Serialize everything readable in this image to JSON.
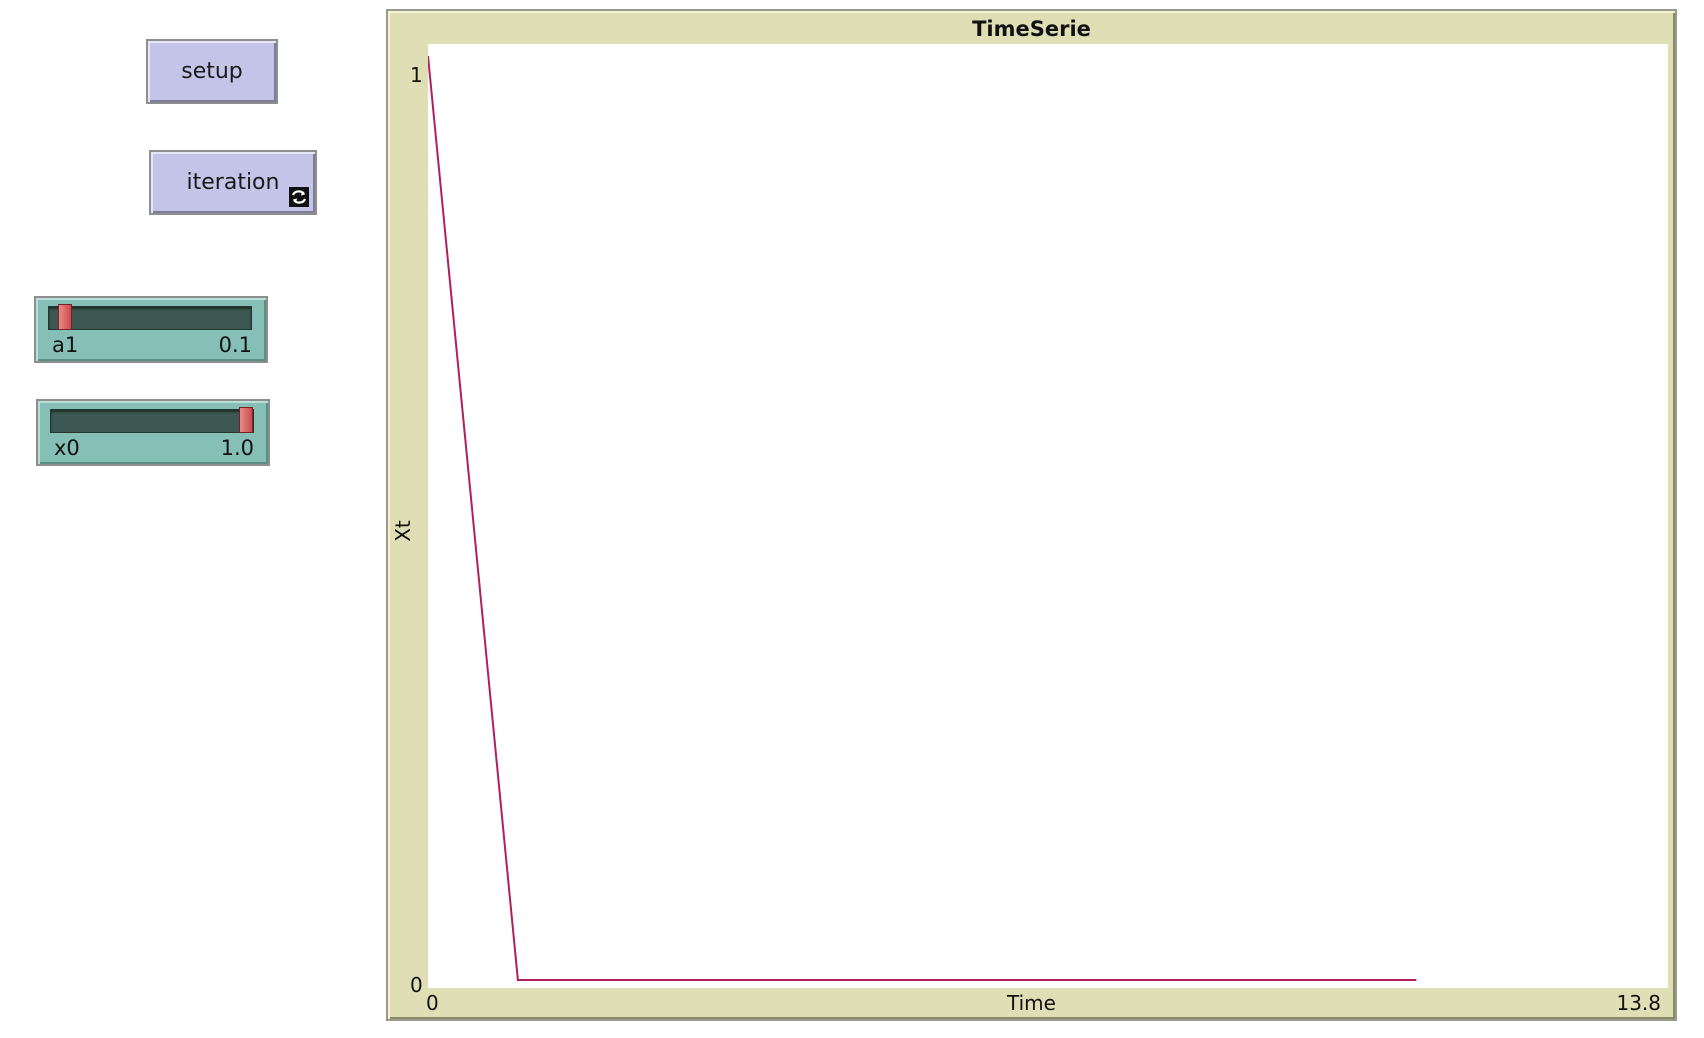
{
  "buttons": {
    "setup": {
      "label": "setup"
    },
    "iteration": {
      "label": "iteration",
      "forever": true,
      "icon": "forever-loop-icon"
    }
  },
  "sliders": {
    "a1": {
      "name": "a1",
      "value_text": "0.1",
      "position_fraction": 0.05
    },
    "x0": {
      "name": "x0",
      "value_text": "1.0",
      "position_fraction": 1.0
    }
  },
  "plot": {
    "title": "TimeSerie",
    "xlabel": "Time",
    "ylabel": "Xt",
    "xtick_min": "0",
    "xtick_max": "13.8",
    "ytick_min": "0",
    "ytick_max": "1"
  },
  "chart_data": {
    "type": "line",
    "title": "TimeSerie",
    "xlabel": "Time",
    "ylabel": "Xt",
    "xlim": [
      0,
      13.8
    ],
    "ylim": [
      0,
      1
    ],
    "grid": false,
    "series": [
      {
        "color": "#b0205f",
        "x": [
          0,
          1,
          2,
          3,
          4,
          5,
          6,
          7,
          8,
          9,
          10,
          11
        ],
        "y": [
          1.0,
          0,
          0,
          0,
          0,
          0,
          0,
          0,
          0,
          0,
          0,
          0
        ]
      }
    ]
  }
}
